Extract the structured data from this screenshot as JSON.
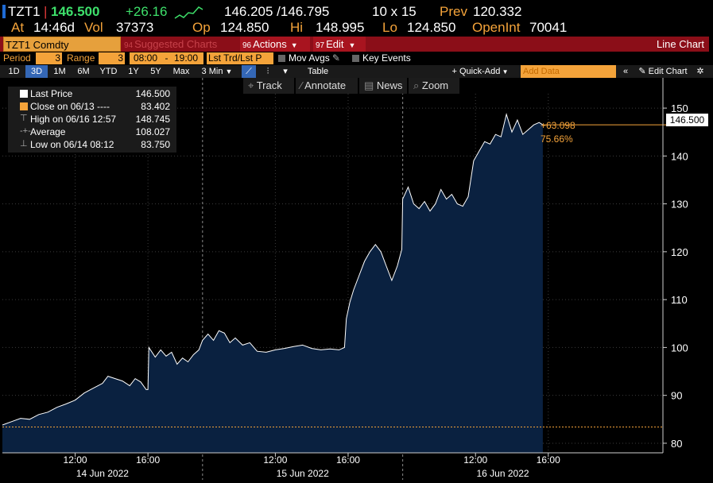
{
  "quote": {
    "ticker": "TZT1",
    "last": "146.500",
    "change": "+26.16",
    "bid_ask": "146.205 /146.795",
    "size": "10 x 15",
    "prev_label": "Prev",
    "prev": "120.332",
    "at_label": "At",
    "time": "14:46d",
    "vol_label": "Vol",
    "volume": "37373",
    "op_label": "Op",
    "open": "124.850",
    "hi_label": "Hi",
    "high": "148.995",
    "lo_label": "Lo",
    "low": "124.850",
    "openint_label": "OpenInt",
    "openint": "70041"
  },
  "toolbar": {
    "security": "TZT1 Comdty",
    "suggested_num": "94",
    "suggested": "Suggested Charts",
    "actions_num": "96",
    "actions": "Actions",
    "edit_num": "97",
    "edit": "Edit",
    "chart_type": "Line Chart"
  },
  "period_bar": {
    "period_label": "Period",
    "period_value": "3",
    "range_label": "Range",
    "range_value": "3",
    "start_time": "08:00",
    "dash": "-",
    "end_time": "19:00",
    "field": "Lst Trd/Lst P",
    "mov_avgs": "Mov Avgs",
    "key_events": "Key Events"
  },
  "range_bar": {
    "ranges": [
      "1D",
      "3D",
      "1M",
      "6M",
      "YTD",
      "1Y",
      "5Y",
      "Max"
    ],
    "selected": "3D",
    "interval": "3 Min",
    "table": "Table",
    "quick_add": "Quick-Add",
    "add_data_placeholder": "Add Data",
    "edit_chart": "Edit Chart"
  },
  "chart_tools": {
    "track": "Track",
    "annotate": "Annotate",
    "news": "News",
    "zoom": "Zoom"
  },
  "legend": {
    "last_price_label": "Last Price",
    "last_price": "146.500",
    "close_label": "Close on 06/13 ----",
    "close": "83.402",
    "high_label": "High on 06/16 12:57",
    "high": "148.745",
    "average_label": "Average",
    "average": "108.027",
    "low_label": "Low on 06/14 08:12",
    "low": "83.750"
  },
  "annotations": {
    "last_tag": "146.500",
    "net_change": "+63.098",
    "pct_change": "75.66%"
  },
  "colors": {
    "line": "#ffffff",
    "fill": "#0a2140",
    "close_line": "#f4a33a",
    "accent": "#f4a33a",
    "toolbar": "#8b0e18"
  },
  "chart_data": {
    "type": "area",
    "title": "",
    "xlabel": "",
    "ylabel": "",
    "ylim": [
      78,
      153
    ],
    "yticks": [
      80,
      90,
      100,
      110,
      120,
      130,
      140,
      150
    ],
    "x_ticks": [
      {
        "label": "12:00",
        "day": 0,
        "hour": 12
      },
      {
        "label": "16:00",
        "day": 0,
        "hour": 16
      },
      {
        "label": "12:00",
        "day": 1,
        "hour": 12
      },
      {
        "label": "16:00",
        "day": 1,
        "hour": 16
      },
      {
        "label": "12:00",
        "day": 2,
        "hour": 12
      },
      {
        "label": "16:00",
        "day": 2,
        "hour": 16
      }
    ],
    "days": [
      "14 Jun 2022",
      "15 Jun 2022",
      "16 Jun 2022"
    ],
    "session": {
      "start_hour": 8,
      "end_hour": 19
    },
    "close_reference": 83.402,
    "series": [
      {
        "points": [
          [
            0,
            8.0,
            83.8
          ],
          [
            0,
            8.5,
            84.5
          ],
          [
            0,
            9.0,
            85.2
          ],
          [
            0,
            9.5,
            85.0
          ],
          [
            0,
            10.0,
            86.0
          ],
          [
            0,
            10.5,
            86.5
          ],
          [
            0,
            11.0,
            87.5
          ],
          [
            0,
            11.5,
            88.2
          ],
          [
            0,
            12.0,
            89.0
          ],
          [
            0,
            12.5,
            90.5
          ],
          [
            0,
            13.0,
            91.5
          ],
          [
            0,
            13.5,
            92.5
          ],
          [
            0,
            13.8,
            94.0
          ],
          [
            0,
            14.2,
            93.5
          ],
          [
            0,
            14.6,
            93.0
          ],
          [
            0,
            15.0,
            92.0
          ],
          [
            0,
            15.3,
            93.5
          ],
          [
            0,
            15.6,
            92.8
          ],
          [
            0,
            15.9,
            91.2
          ],
          [
            0,
            16.0,
            91.2
          ],
          [
            0,
            16.05,
            100.0
          ],
          [
            0,
            16.4,
            98.0
          ],
          [
            0,
            16.7,
            99.5
          ],
          [
            0,
            17.0,
            98.2
          ],
          [
            0,
            17.3,
            99.0
          ],
          [
            0,
            17.6,
            96.5
          ],
          [
            0,
            17.9,
            97.8
          ],
          [
            0,
            18.2,
            97.0
          ],
          [
            0,
            18.5,
            98.5
          ],
          [
            0,
            18.8,
            99.5
          ],
          [
            1,
            8.0,
            101.5
          ],
          [
            1,
            8.3,
            102.8
          ],
          [
            1,
            8.6,
            101.5
          ],
          [
            1,
            8.9,
            103.5
          ],
          [
            1,
            9.2,
            103.0
          ],
          [
            1,
            9.5,
            101.0
          ],
          [
            1,
            9.8,
            102.0
          ],
          [
            1,
            10.2,
            100.5
          ],
          [
            1,
            10.6,
            101.0
          ],
          [
            1,
            11.0,
            99.2
          ],
          [
            1,
            11.5,
            99.0
          ],
          [
            1,
            12.0,
            99.5
          ],
          [
            1,
            12.5,
            99.8
          ],
          [
            1,
            13.0,
            100.2
          ],
          [
            1,
            13.5,
            100.5
          ],
          [
            1,
            14.0,
            99.8
          ],
          [
            1,
            14.5,
            99.5
          ],
          [
            1,
            15.0,
            99.7
          ],
          [
            1,
            15.5,
            99.5
          ],
          [
            1,
            15.8,
            100.0
          ],
          [
            1,
            15.9,
            106.0
          ],
          [
            1,
            16.1,
            109.5
          ],
          [
            1,
            16.3,
            112.0
          ],
          [
            1,
            16.6,
            115.0
          ],
          [
            1,
            16.9,
            118.0
          ],
          [
            1,
            17.2,
            120.0
          ],
          [
            1,
            17.5,
            121.5
          ],
          [
            1,
            17.8,
            120.0
          ],
          [
            1,
            18.1,
            117.0
          ],
          [
            1,
            18.4,
            114.0
          ],
          [
            1,
            18.7,
            117.0
          ],
          [
            1,
            18.95,
            120.5
          ],
          [
            2,
            8.0,
            131.0
          ],
          [
            2,
            8.3,
            133.5
          ],
          [
            2,
            8.6,
            130.0
          ],
          [
            2,
            8.9,
            129.0
          ],
          [
            2,
            9.2,
            130.5
          ],
          [
            2,
            9.5,
            128.5
          ],
          [
            2,
            9.8,
            130.0
          ],
          [
            2,
            10.1,
            133.0
          ],
          [
            2,
            10.4,
            131.0
          ],
          [
            2,
            10.7,
            132.0
          ],
          [
            2,
            11.0,
            130.0
          ],
          [
            2,
            11.3,
            129.5
          ],
          [
            2,
            11.6,
            131.5
          ],
          [
            2,
            11.9,
            139.0
          ],
          [
            2,
            12.2,
            141.0
          ],
          [
            2,
            12.5,
            143.0
          ],
          [
            2,
            12.8,
            142.5
          ],
          [
            2,
            13.1,
            144.5
          ],
          [
            2,
            13.4,
            144.0
          ],
          [
            2,
            13.7,
            148.7
          ],
          [
            2,
            14.0,
            145.0
          ],
          [
            2,
            14.3,
            147.5
          ],
          [
            2,
            14.6,
            144.5
          ],
          [
            2,
            14.9,
            145.5
          ],
          [
            2,
            15.2,
            146.5
          ],
          [
            2,
            15.5,
            147.0
          ],
          [
            2,
            15.7,
            146.5
          ]
        ]
      }
    ],
    "grid": true,
    "legend_position": "top-left"
  }
}
